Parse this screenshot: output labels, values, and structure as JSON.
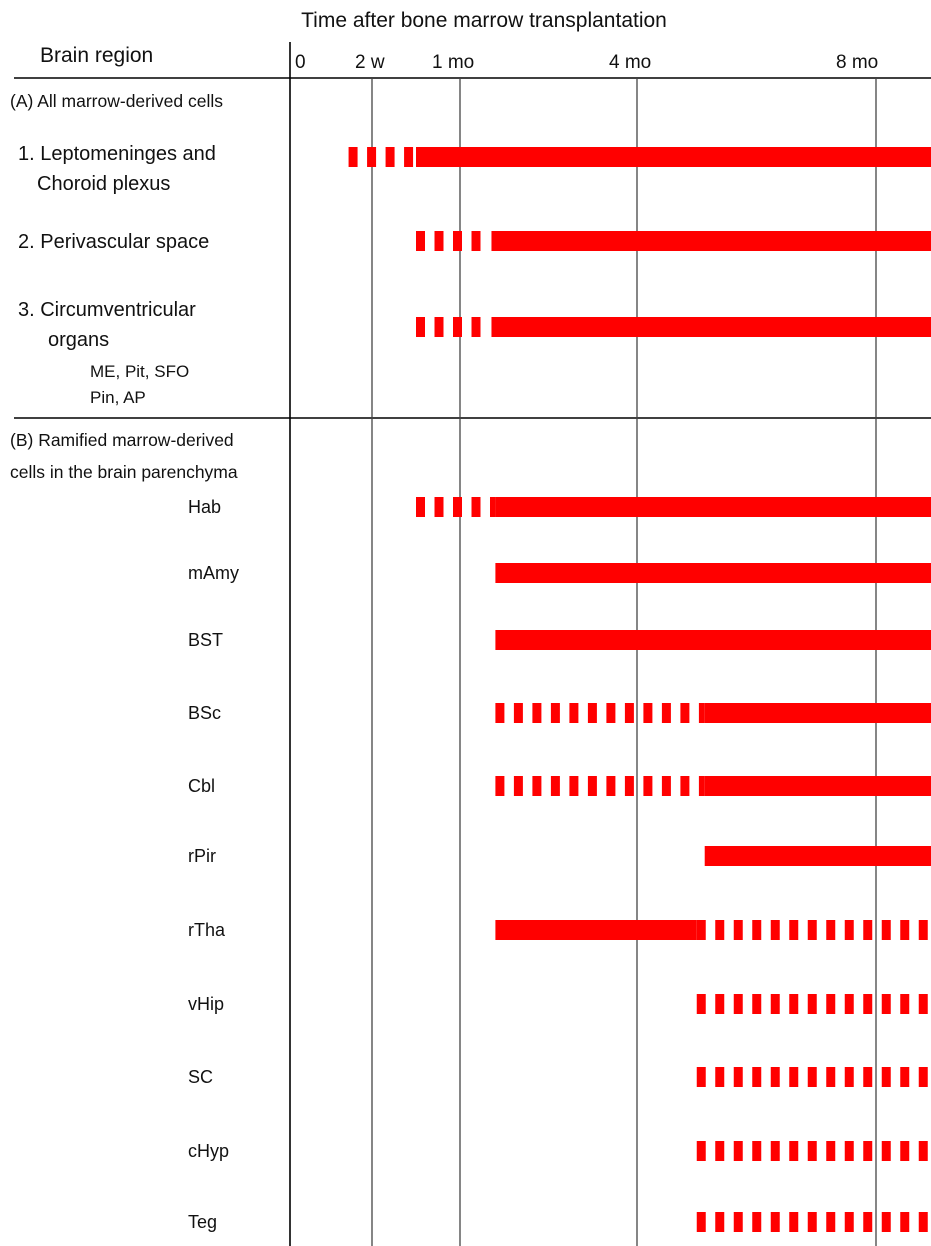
{
  "chart_data": {
    "type": "gantt",
    "title": "Time after bone marrow transplantation",
    "row_header": "Brain region",
    "bar_color": "#ff0000",
    "x_ticks": [
      {
        "label": "0",
        "value_days": 0
      },
      {
        "label": "2 w",
        "value_days": 14
      },
      {
        "label": "1 mo",
        "value_days": 30
      },
      {
        "label": "4 mo",
        "value_days": 120
      },
      {
        "label": "8 mo",
        "value_days": 240
      }
    ],
    "sections": [
      {
        "label": "(A) All marrow-derived cells",
        "rows": [
          {
            "label": [
              "1. Leptomeninges and",
              "Choroid plexus"
            ],
            "sub": [],
            "segments": [
              {
                "start": 10,
                "end": 22,
                "style": "dashed"
              },
              {
                "start": 22,
                "end": 270,
                "style": "solid"
              }
            ]
          },
          {
            "label": [
              "2. Perivascular space"
            ],
            "sub": [],
            "segments": [
              {
                "start": 22,
                "end": 46,
                "style": "dashed"
              },
              {
                "start": 46,
                "end": 270,
                "style": "solid"
              }
            ]
          },
          {
            "label": [
              "3. Circumventricular",
              "organs"
            ],
            "sub": [
              "ME, Pit, SFO",
              "Pin, AP"
            ],
            "segments": [
              {
                "start": 22,
                "end": 46,
                "style": "dashed"
              },
              {
                "start": 46,
                "end": 270,
                "style": "solid"
              }
            ]
          }
        ]
      },
      {
        "label": "(B) Ramified marrow-derived cells in the brain parenchyma",
        "label_lines": [
          "(B) Ramified marrow-derived",
          "cells in the brain parenchyma"
        ],
        "rows": [
          {
            "label": [
              "Hab"
            ],
            "segments": [
              {
                "start": 22,
                "end": 48,
                "style": "dashed"
              },
              {
                "start": 48,
                "end": 270,
                "style": "solid"
              }
            ]
          },
          {
            "label": [
              "mAmy"
            ],
            "segments": [
              {
                "start": 48,
                "end": 270,
                "style": "solid"
              }
            ]
          },
          {
            "label": [
              "BST"
            ],
            "segments": [
              {
                "start": 48,
                "end": 270,
                "style": "solid"
              }
            ]
          },
          {
            "label": [
              "BSc"
            ],
            "segments": [
              {
                "start": 48,
                "end": 154,
                "style": "dashed"
              },
              {
                "start": 154,
                "end": 270,
                "style": "solid"
              }
            ]
          },
          {
            "label": [
              "Cbl"
            ],
            "segments": [
              {
                "start": 48,
                "end": 154,
                "style": "dashed"
              },
              {
                "start": 154,
                "end": 270,
                "style": "solid"
              }
            ]
          },
          {
            "label": [
              "rPir"
            ],
            "segments": [
              {
                "start": 154,
                "end": 270,
                "style": "solid"
              }
            ]
          },
          {
            "label": [
              "rTha"
            ],
            "segments": [
              {
                "start": 48,
                "end": 150,
                "style": "solid"
              },
              {
                "start": 150,
                "end": 270,
                "style": "dashed"
              }
            ]
          },
          {
            "label": [
              "vHip"
            ],
            "segments": [
              {
                "start": 150,
                "end": 270,
                "style": "dashed"
              }
            ]
          },
          {
            "label": [
              "SC"
            ],
            "segments": [
              {
                "start": 150,
                "end": 270,
                "style": "dashed"
              }
            ]
          },
          {
            "label": [
              "cHyp"
            ],
            "segments": [
              {
                "start": 150,
                "end": 270,
                "style": "dashed"
              }
            ]
          },
          {
            "label": [
              "Teg"
            ],
            "segments": [
              {
                "start": 150,
                "end": 270,
                "style": "dashed"
              }
            ]
          }
        ]
      }
    ]
  }
}
